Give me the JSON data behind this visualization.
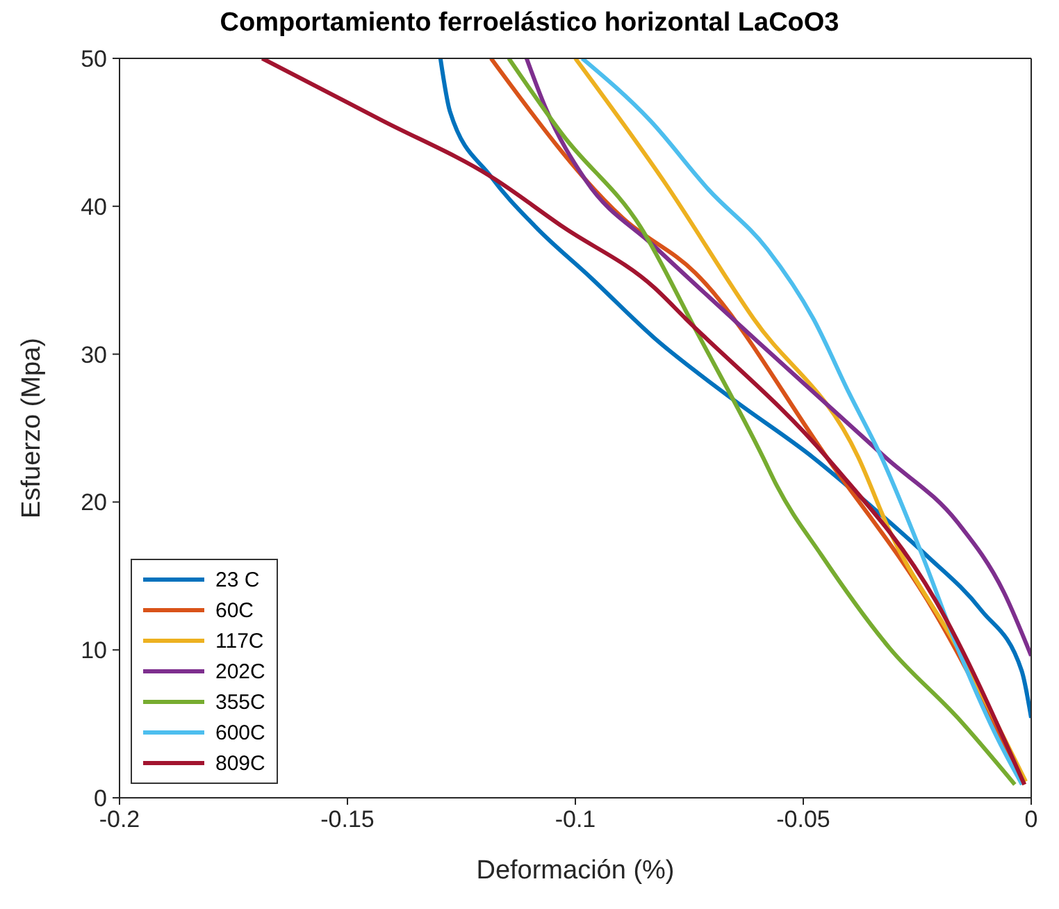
{
  "chart_data": {
    "type": "line",
    "title": "Comportamiento ferroelástico horizontal LaCoO3",
    "xlabel": "Deformación (%)",
    "ylabel": "Esfuerzo (Mpa)",
    "xlim": [
      -0.2,
      0
    ],
    "xticks": [
      -0.2,
      -0.15,
      -0.1,
      -0.05,
      0
    ],
    "ylim": [
      0,
      50
    ],
    "yticks": [
      0,
      10,
      20,
      30,
      40,
      50
    ],
    "legend": "bottom left",
    "marker": "none",
    "line_style": "solid",
    "series": [
      {
        "name": "23 C",
        "color": "#0072bd",
        "x": [
          -0.1296,
          -0.1275,
          -0.1185,
          -0.1087,
          -0.0967,
          -0.0827,
          -0.0657,
          -0.0478,
          -0.0358,
          -0.023,
          -0.011,
          -0.0021,
          0
        ],
        "values": [
          50,
          46.4,
          42,
          38.6,
          35.2,
          31.1,
          27,
          23,
          19.9,
          16.4,
          12.7,
          8.6,
          5.4
        ]
      },
      {
        "name": "60C",
        "color": "#d95319",
        "x": [
          -0.1185,
          -0.0896,
          -0.0737,
          -0.0448,
          -0.0209,
          -0.0015
        ],
        "values": [
          50,
          39.2,
          35.5,
          23,
          12.4,
          0.9
        ]
      },
      {
        "name": "117C",
        "color": "#edb120",
        "x": [
          -0.1,
          -0.0806,
          -0.0609,
          -0.0379,
          -0.031,
          -0.0161,
          -0.0012
        ],
        "values": [
          50,
          41.7,
          32.4,
          23,
          18,
          10.1,
          1.1
        ]
      },
      {
        "name": "202C",
        "color": "#7e2f8e",
        "x": [
          -0.1107,
          -0.1066,
          -0.0976,
          -0.0827,
          -0.0609,
          -0.0319,
          -0.0161,
          -0.006,
          0
        ],
        "values": [
          50,
          46.7,
          41.7,
          37.3,
          31.1,
          23,
          18.6,
          13.9,
          9.6
        ]
      },
      {
        "name": "355C",
        "color": "#77ac30",
        "x": [
          -0.1146,
          -0.1027,
          -0.0857,
          -0.0737,
          -0.0588,
          -0.0558,
          -0.046,
          -0.031,
          -0.0161,
          -0.0036
        ],
        "values": [
          50,
          44.8,
          38.6,
          31.7,
          23,
          21.1,
          16.4,
          10.1,
          5.4,
          0.9
        ]
      },
      {
        "name": "600C",
        "color": "#4dbeee",
        "x": [
          -0.0985,
          -0.0836,
          -0.0707,
          -0.0579,
          -0.0478,
          -0.04,
          -0.0328,
          -0.0239,
          -0.0161,
          -0.0072,
          -0.002
        ],
        "values": [
          50,
          45.8,
          41.1,
          37.1,
          32.4,
          27.4,
          23,
          16.4,
          10.1,
          3.9,
          0.9
        ]
      },
      {
        "name": "809C",
        "color": "#a2142f",
        "x": [
          -0.1687,
          -0.1424,
          -0.1185,
          -0.1027,
          -0.0827,
          -0.0758,
          -0.0448,
          -0.0209,
          -0.0015
        ],
        "values": [
          50,
          45.8,
          42,
          38.6,
          34.5,
          32.4,
          23,
          13.3,
          0.9
        ]
      }
    ]
  }
}
